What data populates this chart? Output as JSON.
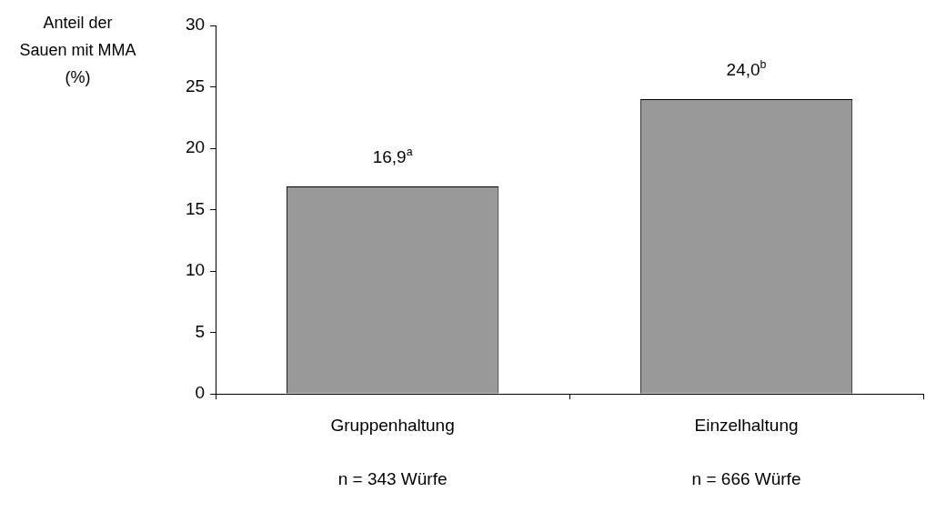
{
  "chart_data": {
    "type": "bar",
    "ylabel": "Anteil der Sauen mit MMA (%)",
    "categories": [
      "Gruppenhaltung",
      "Einzelhaltung"
    ],
    "values": [
      16.9,
      24.0
    ],
    "value_labels": [
      "16,9$^{a}$",
      "24,0$^{b}$"
    ],
    "color": "#999999",
    "ylim": [
      0,
      30
    ],
    "yticks": [
      0,
      5,
      10,
      15,
      20,
      25,
      30
    ],
    "grid": false,
    "legend": false,
    "annotations": [
      "n = 343 Würfe",
      "n = 666 Würfe"
    ]
  }
}
